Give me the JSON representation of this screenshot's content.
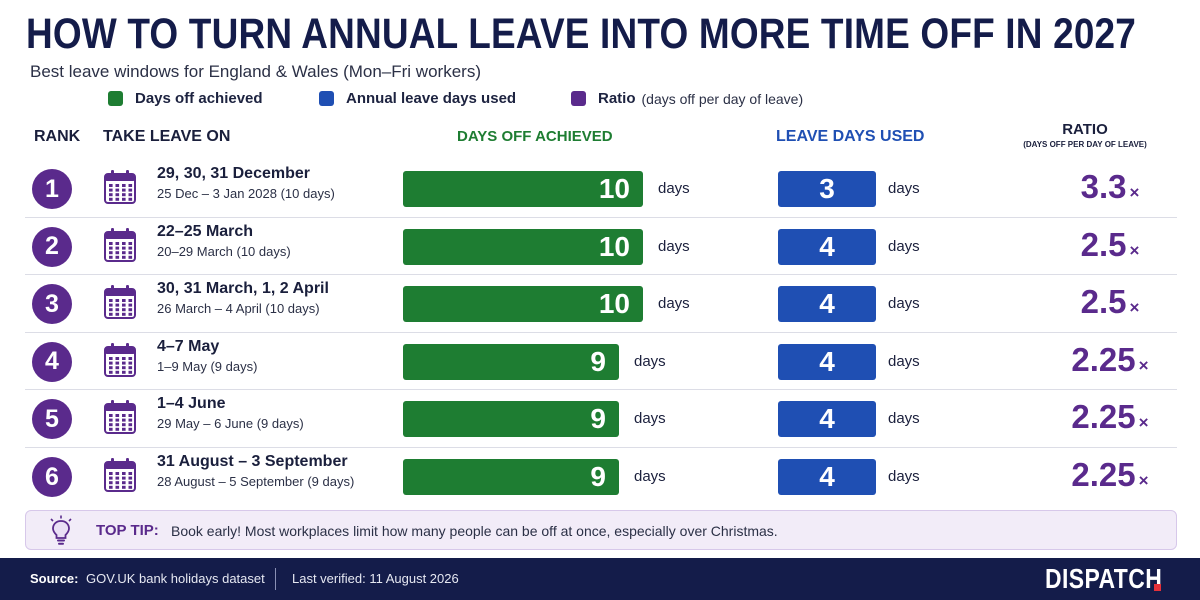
{
  "header": {
    "title": "HOW TO TURN ANNUAL LEAVE INTO MORE TIME OFF IN 2027",
    "subtitle": "Best leave windows for England & Wales (Mon–Fri workers)"
  },
  "legend": {
    "days_off": "Days off achieved",
    "leave_used": "Annual leave days used",
    "ratio": "Ratio",
    "ratio_note": "(days off per day of leave)"
  },
  "columns": {
    "rank": "RANK",
    "take_leave": "TAKE LEAVE ON",
    "days_off": "DAYS OFF ACHIEVED",
    "leave_used": "LEAVE DAYS USED",
    "ratio": "RATIO",
    "ratio_sub": "(DAYS OFF PER DAY OF LEAVE)"
  },
  "units": {
    "days": "days",
    "times": "×"
  },
  "colors": {
    "days_off": "#1e7d32",
    "leave_used": "#1f4fb3",
    "ratio": "#5a2a8c",
    "navy": "#141c4a",
    "accent_red": "#e5313a"
  },
  "chart_data": {
    "type": "bar",
    "max_days": 10,
    "categories": [
      "29, 30, 31 December",
      "22–25 March",
      "30, 31 March, 1, 2 April",
      "4–7 May",
      "1–4 June",
      "31 August – 3 September"
    ],
    "series": [
      {
        "name": "Days off achieved",
        "values": [
          10,
          10,
          10,
          9,
          9,
          9
        ]
      },
      {
        "name": "Annual leave days used",
        "values": [
          3,
          4,
          4,
          4,
          4,
          4
        ]
      }
    ],
    "rows": [
      {
        "rank": "1",
        "leave_on": "29, 30, 31 December",
        "window": "25 Dec – 3 Jan 2028 (10 days)",
        "days_off": 10,
        "leave_used": 3,
        "ratio": "3.3"
      },
      {
        "rank": "2",
        "leave_on": "22–25 March",
        "window": "20–29 March (10 days)",
        "days_off": 10,
        "leave_used": 4,
        "ratio": "2.5"
      },
      {
        "rank": "3",
        "leave_on": "30, 31 March, 1, 2 April",
        "window": "26 March – 4 April (10 days)",
        "days_off": 10,
        "leave_used": 4,
        "ratio": "2.5"
      },
      {
        "rank": "4",
        "leave_on": "4–7 May",
        "window": "1–9 May (9 days)",
        "days_off": 9,
        "leave_used": 4,
        "ratio": "2.25"
      },
      {
        "rank": "5",
        "leave_on": "1–4 June",
        "window": "29 May – 6 June (9 days)",
        "days_off": 9,
        "leave_used": 4,
        "ratio": "2.25"
      },
      {
        "rank": "6",
        "leave_on": "31 August – 3 September",
        "window": "28 August – 5 September (9 days)",
        "days_off": 9,
        "leave_used": 4,
        "ratio": "2.25"
      }
    ]
  },
  "tip": {
    "label": "TOP TIP:",
    "text": "Book early! Most workplaces limit how many people can be off at once, especially over Christmas."
  },
  "footer": {
    "source_label": "Source:",
    "source": "GOV.UK bank holidays dataset",
    "verified": "Last verified: 11 August 2026",
    "brand": "DISPATCH"
  },
  "icons": {
    "calendar": "calendar-icon",
    "tip": "lightbulb-icon"
  }
}
